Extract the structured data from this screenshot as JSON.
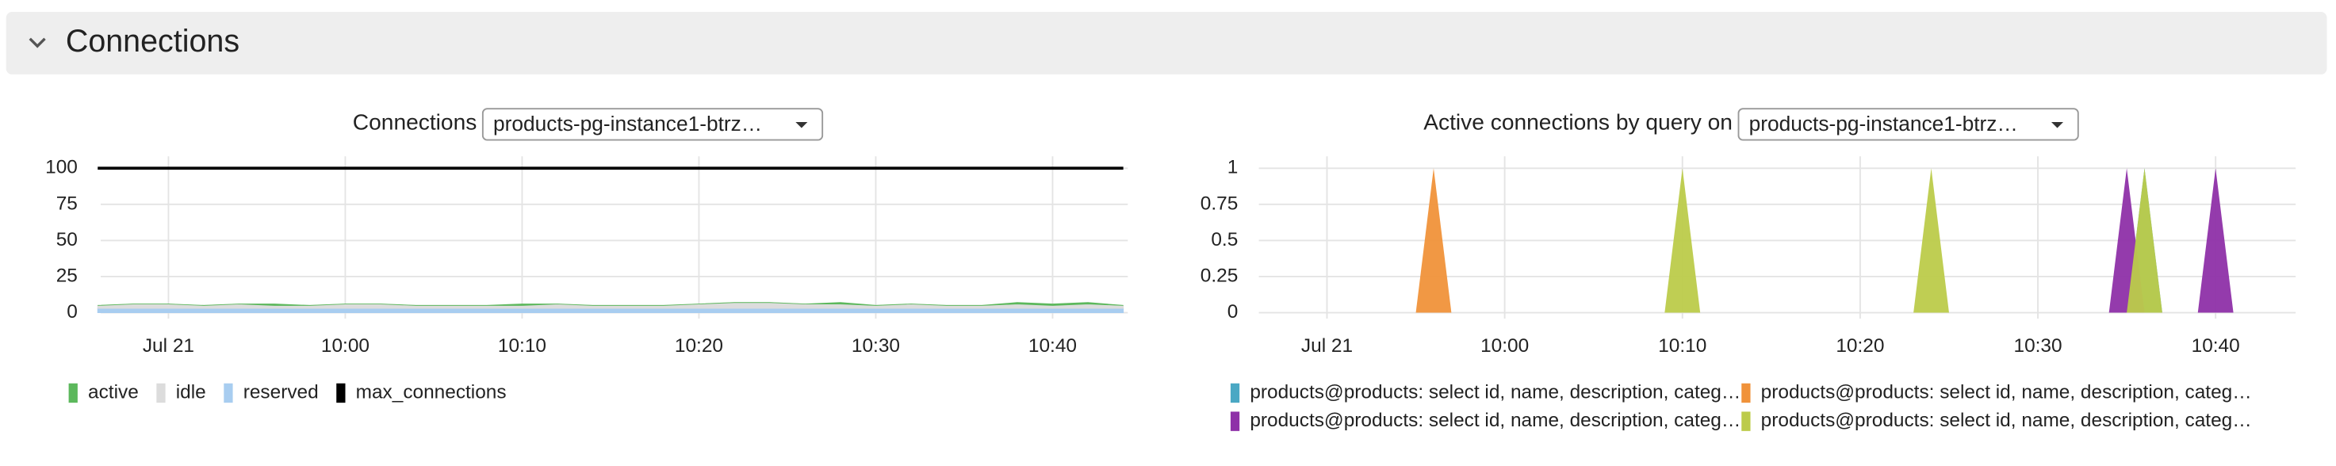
{
  "section": {
    "title": "Connections"
  },
  "chart_data": [
    {
      "type": "stacked_area",
      "title": "Connections",
      "dropdown": "products-pg-instance1-btrz…",
      "x": [
        "09:46",
        "09:48",
        "09:50",
        "09:52",
        "09:54",
        "09:56",
        "09:58",
        "10:00",
        "10:02",
        "10:04",
        "10:06",
        "10:08",
        "10:10",
        "10:12",
        "10:14",
        "10:16",
        "10:18",
        "10:20",
        "10:22",
        "10:24",
        "10:26",
        "10:28",
        "10:30",
        "10:32",
        "10:34",
        "10:36",
        "10:38",
        "10:40",
        "10:42",
        "10:44"
      ],
      "xlim": [
        "09:46",
        "10:44"
      ],
      "xticks": [
        {
          "value": "09:50",
          "label": "Jul 21"
        },
        "10:00",
        "10:10",
        "10:20",
        "10:30",
        "10:40"
      ],
      "ylim": [
        0,
        100
      ],
      "yticks": [
        0,
        25,
        50,
        75,
        100
      ],
      "grid": true,
      "series": [
        {
          "name": "active",
          "color": "#5cb85c",
          "values": [
            0,
            0,
            0,
            0,
            0,
            1,
            0,
            0,
            0,
            0,
            0,
            0,
            1,
            0,
            0,
            0,
            0,
            0,
            0,
            0,
            0,
            1,
            0,
            0,
            0,
            0,
            1,
            1,
            1,
            0
          ]
        },
        {
          "name": "idle",
          "color": "#dcdcdc",
          "values": [
            2,
            3,
            3,
            2,
            3,
            2,
            2,
            3,
            3,
            2,
            2,
            2,
            2,
            3,
            2,
            2,
            2,
            3,
            4,
            4,
            3,
            3,
            2,
            3,
            2,
            2,
            3,
            2,
            3,
            2
          ]
        },
        {
          "name": "reserved",
          "color": "#a8cdf0",
          "values": [
            3,
            3,
            3,
            3,
            3,
            3,
            3,
            3,
            3,
            3,
            3,
            3,
            3,
            3,
            3,
            3,
            3,
            3,
            3,
            3,
            3,
            3,
            3,
            3,
            3,
            3,
            3,
            3,
            3,
            3
          ]
        },
        {
          "name": "max_connections",
          "color": "#000000",
          "style": "line",
          "values": [
            100,
            100,
            100,
            100,
            100,
            100,
            100,
            100,
            100,
            100,
            100,
            100,
            100,
            100,
            100,
            100,
            100,
            100,
            100,
            100,
            100,
            100,
            100,
            100,
            100,
            100,
            100,
            100,
            100,
            100
          ]
        }
      ]
    },
    {
      "type": "area",
      "title": "Active connections by query on",
      "dropdown": "products-pg-instance1-btrz…",
      "xlim": [
        "09:46",
        "10:44"
      ],
      "xticks": [
        {
          "value": "09:50",
          "label": "Jul 21"
        },
        "10:00",
        "10:10",
        "10:20",
        "10:30",
        "10:40"
      ],
      "ylim": [
        0,
        1
      ],
      "yticks": [
        0,
        0.25,
        0.5,
        0.75,
        1
      ],
      "grid": true,
      "series": [
        {
          "name": "products@products: select id, name, description, categ…",
          "color": "#4aa8c4",
          "x": [
            "10:35",
            "10:36",
            "10:37"
          ],
          "values": [
            0,
            1,
            0
          ]
        },
        {
          "name": "products@products: select id, name, description, categ…",
          "color": "#f0923a",
          "x": [
            "09:55",
            "09:56",
            "09:57"
          ],
          "values": [
            0,
            1,
            0
          ]
        },
        {
          "name": "products@products: select id, name, description, categ…",
          "color": "#8e30a8",
          "x": [
            "10:34",
            "10:35",
            "10:36",
            "10:39",
            "10:40",
            "10:41"
          ],
          "values": [
            0,
            1,
            0,
            0,
            1,
            0
          ]
        },
        {
          "name": "products@products: select id, name, description, categ…",
          "color": "#bccb4a",
          "x": [
            "10:09",
            "10:10",
            "10:11",
            "10:23",
            "10:24",
            "10:25",
            "10:35",
            "10:36",
            "10:37"
          ],
          "values": [
            0,
            1,
            0,
            0,
            1,
            0,
            0,
            1,
            0
          ]
        }
      ]
    }
  ]
}
